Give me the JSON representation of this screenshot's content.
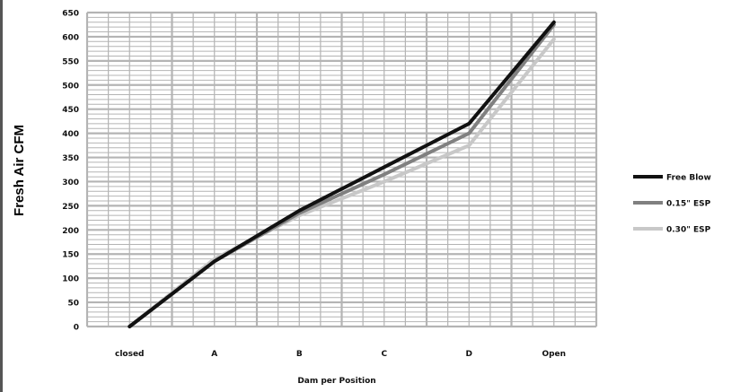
{
  "chart_data": {
    "type": "line",
    "title": "",
    "xlabel": "Dam per Position",
    "ylabel": "Fresh Air CFM",
    "categories": [
      "closed",
      "A",
      "B",
      "C",
      "D",
      "Open"
    ],
    "ylim": [
      0,
      650
    ],
    "yticks": [
      0,
      50,
      100,
      150,
      200,
      250,
      300,
      350,
      400,
      450,
      500,
      550,
      600,
      650
    ],
    "grid": true,
    "legend_position": "right",
    "series": [
      {
        "name": "Free Blow",
        "values": [
          0,
          135,
          240,
          330,
          420,
          630
        ],
        "color": "#111111"
      },
      {
        "name": "0.15\" ESP",
        "values": [
          0,
          135,
          235,
          315,
          400,
          625
        ],
        "color": "#808080"
      },
      {
        "name": "0.30\" ESP",
        "values": [
          0,
          140,
          230,
          300,
          375,
          595
        ],
        "color": "#c8c8c8"
      }
    ],
    "colors": {
      "grid": "#b4b4b4",
      "plot_background": "#ffffff",
      "frame": "#555555"
    }
  }
}
